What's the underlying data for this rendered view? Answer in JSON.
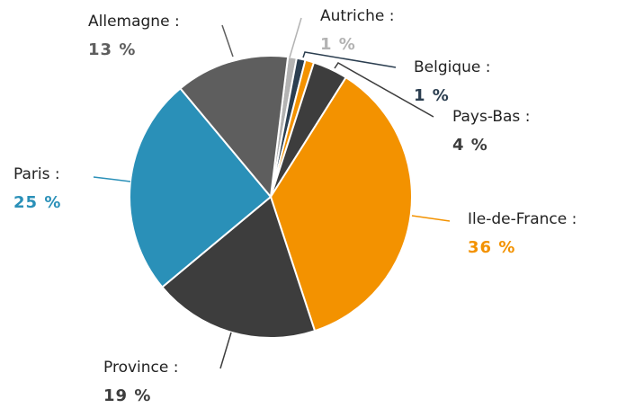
{
  "chart_data": {
    "type": "pie",
    "categories": [
      "Autriche :",
      "Belgique :",
      null,
      "Pays-Bas :",
      "Ile-de-France :",
      "Province :",
      "Paris :",
      "Allemagne :"
    ],
    "values": [
      1,
      1,
      1,
      4,
      36,
      19,
      25,
      13
    ],
    "value_labels": [
      "1 %",
      "1 %",
      null,
      "4 %",
      "36 %",
      "19 %",
      "25 %",
      "13 %"
    ],
    "colors": [
      "#b3b3b3",
      "#2b3e50",
      "#f39200",
      "#3d3d3d",
      "#f39200",
      "#3d3d3d",
      "#2a90b8",
      "#5e5e5e"
    ]
  }
}
